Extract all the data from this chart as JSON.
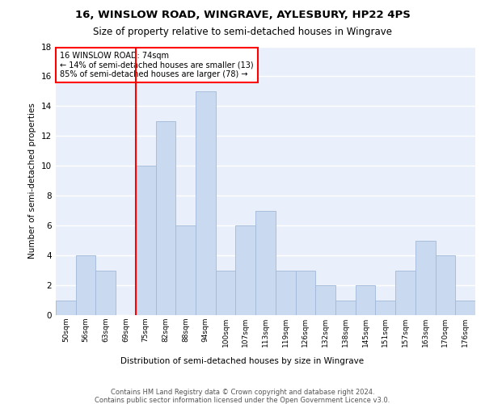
{
  "title1": "16, WINSLOW ROAD, WINGRAVE, AYLESBURY, HP22 4PS",
  "title2": "Size of property relative to semi-detached houses in Wingrave",
  "xlabel": "Distribution of semi-detached houses by size in Wingrave",
  "ylabel": "Number of semi-detached properties",
  "categories": [
    "50sqm",
    "56sqm",
    "63sqm",
    "69sqm",
    "75sqm",
    "82sqm",
    "88sqm",
    "94sqm",
    "100sqm",
    "107sqm",
    "113sqm",
    "119sqm",
    "126sqm",
    "132sqm",
    "138sqm",
    "145sqm",
    "151sqm",
    "157sqm",
    "163sqm",
    "170sqm",
    "176sqm"
  ],
  "values": [
    1,
    4,
    3,
    0,
    10,
    13,
    6,
    15,
    3,
    6,
    7,
    3,
    3,
    2,
    1,
    2,
    1,
    3,
    5,
    4,
    1
  ],
  "bar_color": "#c9d9f0",
  "bar_edge_color": "#a0b8d8",
  "annotation_text": "16 WINSLOW ROAD: 74sqm\n← 14% of semi-detached houses are smaller (13)\n85% of semi-detached houses are larger (78) →",
  "annotation_box_color": "white",
  "annotation_box_edge_color": "red",
  "footer_text": "Contains HM Land Registry data © Crown copyright and database right 2024.\nContains public sector information licensed under the Open Government Licence v3.0.",
  "ylim": [
    0,
    18
  ],
  "yticks": [
    0,
    2,
    4,
    6,
    8,
    10,
    12,
    14,
    16,
    18
  ],
  "bg_color": "#eaf0fb",
  "grid_color": "white",
  "red_line_color": "red",
  "title1_fontsize": 9.5,
  "title2_fontsize": 8.5
}
